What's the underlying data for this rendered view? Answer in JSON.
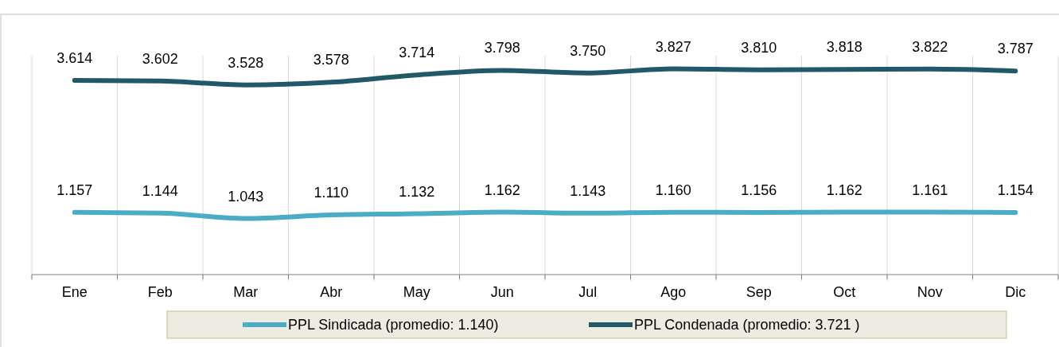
{
  "chart_data": {
    "type": "line",
    "categories": [
      "Ene",
      "Feb",
      "Mar",
      "Abr",
      "May",
      "Jun",
      "Jul",
      "Ago",
      "Sep",
      "Oct",
      "Nov",
      "Dic"
    ],
    "series": [
      {
        "name": "PPL Sindicada (promedio: 1.140)",
        "color": "#4bacc6",
        "values": [
          1157,
          1144,
          1043,
          1110,
          1132,
          1162,
          1143,
          1160,
          1156,
          1162,
          1161,
          1154
        ],
        "value_labels": [
          "1.157",
          "1.144",
          "1.043",
          "1.110",
          "1.132",
          "1.162",
          "1.143",
          "1.160",
          "1.156",
          "1.162",
          "1.161",
          "1.154"
        ]
      },
      {
        "name": "PPL Condenada (promedio: 3.721 )",
        "color": "#215968",
        "values": [
          3614,
          3602,
          3528,
          3578,
          3714,
          3798,
          3750,
          3827,
          3810,
          3818,
          3822,
          3787
        ],
        "value_labels": [
          "3.614",
          "3.602",
          "3.528",
          "3.578",
          "3.714",
          "3.798",
          "3.750",
          "3.827",
          "3.810",
          "3.818",
          "3.822",
          "3.787"
        ]
      }
    ],
    "tick_labels": "x",
    "grid": "x",
    "legend": "bottom",
    "marker": "none",
    "line_style": "solid"
  }
}
